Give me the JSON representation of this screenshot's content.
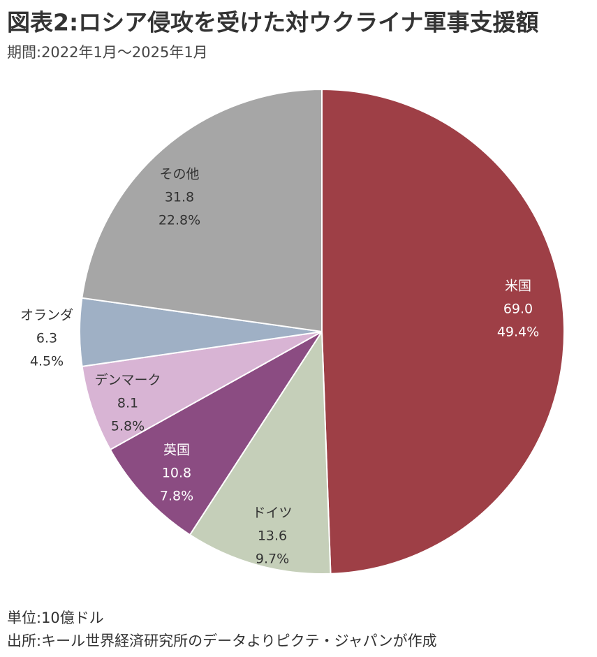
{
  "chart_data": {
    "type": "pie",
    "title": "図表2:ロシア侵攻を受けた対ウクライナ軍事支援額",
    "subtitle": "期間:2022年1月～2025年1月",
    "categories": [
      "米国",
      "ドイツ",
      "英国",
      "デンマーク",
      "オランダ",
      "その他"
    ],
    "values": [
      69.0,
      13.6,
      10.8,
      8.1,
      6.3,
      31.8
    ],
    "value_labels": [
      "69.0",
      "13.6",
      "10.8",
      "8.1",
      "6.3",
      "31.8"
    ],
    "percent_labels": [
      "49.4%",
      "9.7%",
      "7.8%",
      "5.8%",
      "4.5%",
      "22.8%"
    ],
    "colors": [
      "#9e3f46",
      "#c5cfb9",
      "#8b4c82",
      "#d8b4d4",
      "#9fb0c5",
      "#a6a6a6"
    ],
    "notes": [
      "単位:10億ドル",
      "出所:キール世界経済研究所のデータよりピクテ・ジャパンが作成"
    ]
  }
}
